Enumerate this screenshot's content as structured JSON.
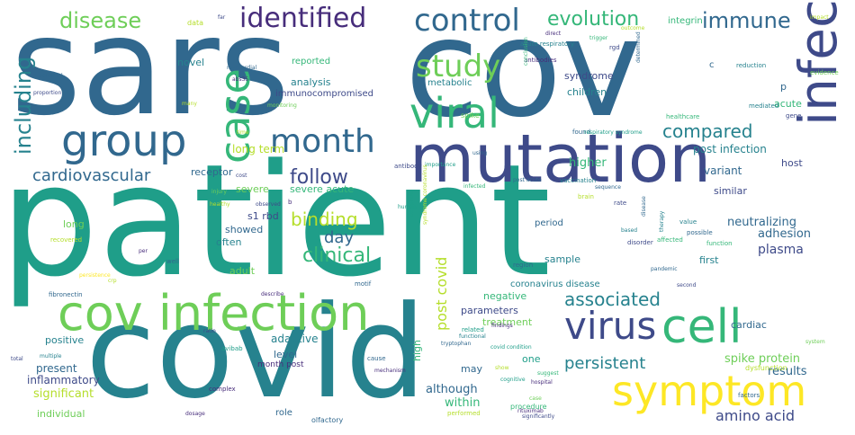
{
  "palette": {
    "dark_purple": "#472d7b",
    "purple": "#3e4a89",
    "blue": "#31688e",
    "teal": "#26828e",
    "sea_green": "#1f9e89",
    "green": "#35b779",
    "lime": "#6ece58",
    "yellow_green": "#b5de2b",
    "yellow": "#fde725"
  },
  "words": [
    {
      "text": "sars",
      "color": "#31688e"
    },
    {
      "text": "cov",
      "color": "#31688e"
    },
    {
      "text": "patient",
      "color": "#1f9e89"
    },
    {
      "text": "covid",
      "color": "#26828e"
    },
    {
      "text": "mutation",
      "color": "#3e4a89"
    },
    {
      "text": "infection",
      "color": "#3e4a89"
    },
    {
      "text": "cov infection",
      "color": "#6ece58"
    },
    {
      "text": "symptom",
      "color": "#fde725"
    },
    {
      "text": "cell",
      "color": "#35b779"
    },
    {
      "text": "group",
      "color": "#31688e"
    },
    {
      "text": "case",
      "color": "#35b779"
    },
    {
      "text": "viral",
      "color": "#35b779"
    },
    {
      "text": "virus",
      "color": "#3e4a89"
    },
    {
      "text": "control",
      "color": "#31688e"
    },
    {
      "text": "month",
      "color": "#31688e"
    },
    {
      "text": "study",
      "color": "#6ece58"
    },
    {
      "text": "identified",
      "color": "#472d7b"
    },
    {
      "text": "including",
      "color": "#26828e"
    },
    {
      "text": "disease",
      "color": "#6ece58"
    },
    {
      "text": "evolution",
      "color": "#35b779"
    },
    {
      "text": "immune",
      "color": "#31688e"
    },
    {
      "text": "cardiovascular",
      "color": "#31688e"
    },
    {
      "text": "follow",
      "color": "#3e4a89"
    },
    {
      "text": "binding",
      "color": "#b5de2b"
    },
    {
      "text": "clinical",
      "color": "#35b779"
    },
    {
      "text": "day",
      "color": "#31688e"
    },
    {
      "text": "post covid",
      "color": "#b5de2b"
    },
    {
      "text": "compared",
      "color": "#26828e"
    },
    {
      "text": "associated",
      "color": "#26828e"
    },
    {
      "text": "persistent",
      "color": "#26828e"
    },
    {
      "text": "amino acid",
      "color": "#3e4a89"
    },
    {
      "text": "month post",
      "color": "#472d7b"
    },
    {
      "text": "positive",
      "color": "#26828e"
    },
    {
      "text": "adaptive",
      "color": "#26828e"
    },
    {
      "text": "present",
      "color": "#31688e"
    },
    {
      "text": "inflammatory",
      "color": "#3e4a89"
    },
    {
      "text": "significant",
      "color": "#b5de2b"
    },
    {
      "text": "individual",
      "color": "#6ece58"
    },
    {
      "text": "level",
      "color": "#31688e"
    },
    {
      "text": "although",
      "color": "#31688e"
    },
    {
      "text": "within",
      "color": "#35b779"
    },
    {
      "text": "may",
      "color": "#31688e"
    },
    {
      "text": "one",
      "color": "#1f9e89"
    },
    {
      "text": "high",
      "color": "#35b779"
    },
    {
      "text": "spike protein",
      "color": "#6ece58"
    },
    {
      "text": "results",
      "color": "#31688e"
    },
    {
      "text": "cardiac",
      "color": "#31688e"
    },
    {
      "text": "treatment",
      "color": "#6ece58"
    },
    {
      "text": "negative",
      "color": "#35b779"
    },
    {
      "text": "coronavirus disease",
      "color": "#26828e"
    },
    {
      "text": "parameters",
      "color": "#3e4a89"
    },
    {
      "text": "sample",
      "color": "#26828e"
    },
    {
      "text": "plasma",
      "color": "#3e4a89"
    },
    {
      "text": "adhesion",
      "color": "#31688e"
    },
    {
      "text": "neutralizing",
      "color": "#31688e"
    },
    {
      "text": "period",
      "color": "#31688e"
    },
    {
      "text": "first",
      "color": "#26828e"
    },
    {
      "text": "similar",
      "color": "#3e4a89"
    },
    {
      "text": "variant",
      "color": "#31688e"
    },
    {
      "text": "post infection",
      "color": "#26828e"
    },
    {
      "text": "host",
      "color": "#3e4a89"
    },
    {
      "text": "acute",
      "color": "#35b779"
    },
    {
      "text": "children",
      "color": "#26828e"
    },
    {
      "text": "syndrome",
      "color": "#3e4a89"
    },
    {
      "text": "p",
      "color": "#31688e"
    },
    {
      "text": "metabolic",
      "color": "#26828e"
    },
    {
      "text": "analysis",
      "color": "#26828e"
    },
    {
      "text": "immunocompromised",
      "color": "#3e4a89"
    },
    {
      "text": "reported",
      "color": "#35b779"
    },
    {
      "text": "novel",
      "color": "#26828e"
    },
    {
      "text": "higher",
      "color": "#35b779"
    },
    {
      "text": "long term",
      "color": "#b5de2b"
    },
    {
      "text": "receptor",
      "color": "#31688e"
    },
    {
      "text": "severe",
      "color": "#6ece58"
    },
    {
      "text": "severe acute",
      "color": "#35b779"
    },
    {
      "text": "s1 rbd",
      "color": "#3e4a89"
    },
    {
      "text": "showed",
      "color": "#31688e"
    },
    {
      "text": "often",
      "color": "#26828e"
    },
    {
      "text": "adult",
      "color": "#6ece58"
    },
    {
      "text": "long",
      "color": "#6ece58"
    },
    {
      "text": "integrin",
      "color": "#35b779"
    },
    {
      "text": "acute respiratory",
      "color": "#26828e"
    },
    {
      "text": "data",
      "color": "#b5de2b"
    },
    {
      "text": "spike",
      "color": "#6ece58"
    },
    {
      "text": "antibodies",
      "color": "#472d7b"
    },
    {
      "text": "mediated",
      "color": "#26828e"
    },
    {
      "text": "evidence",
      "color": "#6ece58"
    },
    {
      "text": "reduction",
      "color": "#26828e"
    },
    {
      "text": "impact",
      "color": "#b5de2b"
    },
    {
      "text": "healthcare",
      "color": "#35b779"
    },
    {
      "text": "gene",
      "color": "#3e4a89"
    },
    {
      "text": "rgd",
      "color": "#3e4a89"
    },
    {
      "text": "outcome",
      "color": "#b5de2b"
    },
    {
      "text": "direct",
      "color": "#472d7b"
    },
    {
      "text": "trigger",
      "color": "#35b779"
    },
    {
      "text": "found",
      "color": "#31688e"
    },
    {
      "text": "respiratory syndrome",
      "color": "#1f9e89"
    },
    {
      "text": "antibody",
      "color": "#3e4a89"
    },
    {
      "text": "human",
      "color": "#1f9e89"
    },
    {
      "text": "importance",
      "color": "#1f9e89"
    },
    {
      "text": "vaccination",
      "color": "#26828e"
    },
    {
      "text": "sequence",
      "color": "#31688e"
    },
    {
      "text": "brain",
      "color": "#b5de2b"
    },
    {
      "text": "rate",
      "color": "#3e4a89"
    },
    {
      "text": "disease",
      "color": "#31688e"
    },
    {
      "text": "value",
      "color": "#26828e"
    },
    {
      "text": "possible",
      "color": "#31688e"
    },
    {
      "text": "function",
      "color": "#35b779"
    },
    {
      "text": "affected",
      "color": "#35b779"
    },
    {
      "text": "therapy",
      "color": "#26828e"
    },
    {
      "text": "disorder",
      "color": "#3e4a89"
    },
    {
      "text": "based",
      "color": "#26828e"
    },
    {
      "text": "region",
      "color": "#31688e"
    },
    {
      "text": "pandemic",
      "color": "#31688e"
    },
    {
      "text": "second",
      "color": "#3e4a89"
    },
    {
      "text": "system",
      "color": "#6ece58"
    },
    {
      "text": "dysfunction",
      "color": "#b5de2b"
    },
    {
      "text": "factors",
      "color": "#31688e"
    },
    {
      "text": "significantly",
      "color": "#3e4a89"
    },
    {
      "text": "hospital",
      "color": "#472d7b"
    },
    {
      "text": "suggest",
      "color": "#35b779"
    },
    {
      "text": "show",
      "color": "#b5de2b"
    },
    {
      "text": "procedure",
      "color": "#35b779"
    },
    {
      "text": "tryptophan",
      "color": "#31688e"
    },
    {
      "text": "cognitive",
      "color": "#1f9e89"
    },
    {
      "text": "cause",
      "color": "#31688e"
    },
    {
      "text": "performed",
      "color": "#b5de2b"
    },
    {
      "text": "findings",
      "color": "#472d7b"
    },
    {
      "text": "related",
      "color": "#1f9e89"
    },
    {
      "text": "complex",
      "color": "#472d7b"
    },
    {
      "text": "role",
      "color": "#31688e"
    },
    {
      "text": "olfactory",
      "color": "#31688e"
    },
    {
      "text": "mechanism",
      "color": "#472d7b"
    },
    {
      "text": "motif",
      "color": "#31688e"
    },
    {
      "text": "avibab",
      "color": "#1f9e89"
    },
    {
      "text": "ratio",
      "color": "#3e4a89"
    },
    {
      "text": "crp",
      "color": "#b5de2b"
    },
    {
      "text": "fibronectin",
      "color": "#31688e"
    },
    {
      "text": "multiple",
      "color": "#26828e"
    },
    {
      "text": "total",
      "color": "#3e4a89"
    },
    {
      "text": "dosage",
      "color": "#472d7b"
    },
    {
      "text": "describe",
      "color": "#472d7b"
    },
    {
      "text": "recovered",
      "color": "#b5de2b"
    },
    {
      "text": "persistence",
      "color": "#fde725"
    },
    {
      "text": "per",
      "color": "#472d7b"
    },
    {
      "text": "well",
      "color": "#31688e"
    },
    {
      "text": "injury",
      "color": "#6ece58"
    },
    {
      "text": "healthy",
      "color": "#b5de2b"
    },
    {
      "text": "cost",
      "color": "#3e4a89"
    },
    {
      "text": "b",
      "color": "#472d7b"
    },
    {
      "text": "observed",
      "color": "#3e4a89"
    },
    {
      "text": "complete",
      "color": "#1f9e89"
    },
    {
      "text": "syndrome coronavirus",
      "color": "#b5de2b"
    },
    {
      "text": "monitoring",
      "color": "#6ece58"
    },
    {
      "text": "proportion",
      "color": "#3e4a89"
    },
    {
      "text": "potential",
      "color": "#31688e"
    },
    {
      "text": "many",
      "color": "#b5de2b"
    },
    {
      "text": "myocardial",
      "color": "#31688e"
    },
    {
      "text": "abs35",
      "color": "#472d7b"
    },
    {
      "text": "far",
      "color": "#3e4a89"
    },
    {
      "text": "time",
      "color": "#b5de2b"
    },
    {
      "text": "c",
      "color": "#31688e"
    },
    {
      "text": "using",
      "color": "#31688e"
    },
    {
      "text": "post acute",
      "color": "#31688e"
    },
    {
      "text": "infected",
      "color": "#35b779"
    },
    {
      "text": "determined",
      "color": "#31688e"
    },
    {
      "text": "conclusion",
      "color": "#35b779"
    },
    {
      "text": "covid condition",
      "color": "#1f9e89"
    },
    {
      "text": "functional",
      "color": "#26828e"
    },
    {
      "text": "case",
      "color": "#6ece58"
    },
    {
      "text": "rituximab",
      "color": "#472d7b"
    }
  ]
}
